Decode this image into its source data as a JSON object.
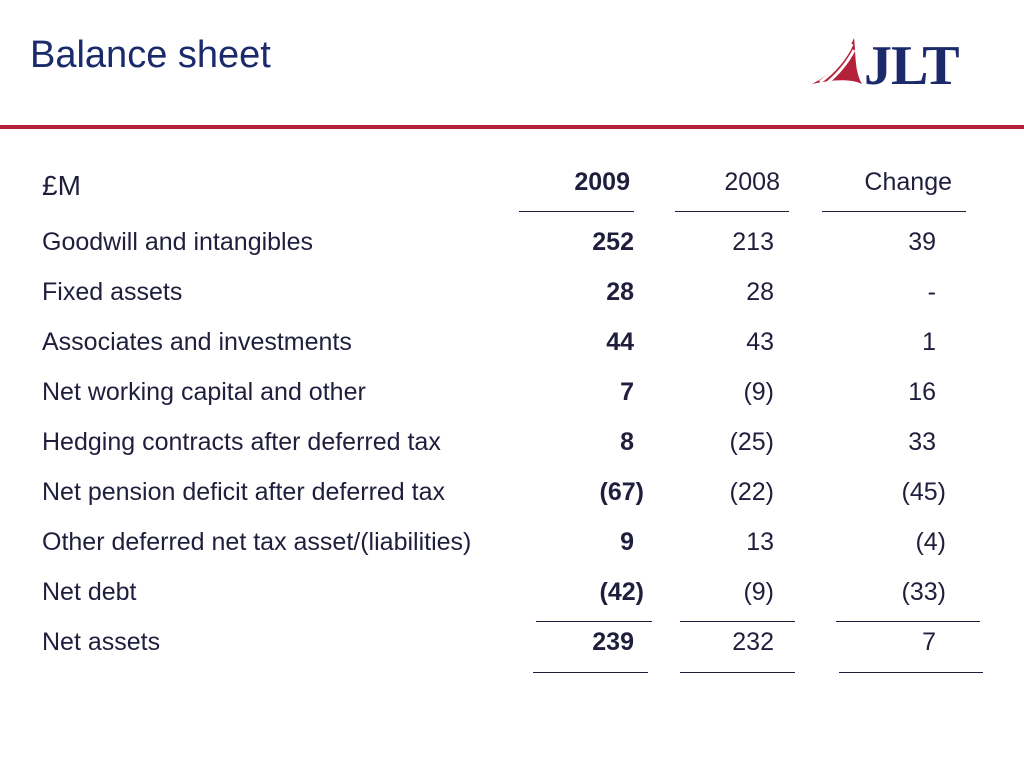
{
  "page_title": "Balance sheet",
  "logo": {
    "text": "JLT",
    "icon": "jlt-sail-logo",
    "accent": "#b5213b",
    "brand": "#1b2a6b"
  },
  "table": {
    "unit_label": "£M",
    "columns": [
      "2009",
      "2008",
      "Change"
    ],
    "rows": [
      {
        "label": "Goodwill and intangibles",
        "y2009": "252",
        "y2008": "213",
        "change": "39"
      },
      {
        "label": "Fixed assets",
        "y2009": "28",
        "y2008": "28",
        "change": "-"
      },
      {
        "label": "Associates and investments",
        "y2009": "44",
        "y2008": "43",
        "change": "1"
      },
      {
        "label": "Net working capital and other",
        "y2009": "7",
        "y2008": "(9)",
        "change": "16"
      },
      {
        "label": "Hedging contracts after deferred tax",
        "y2009": "8",
        "y2008": "(25)",
        "change": "33"
      },
      {
        "label": "Net pension deficit after deferred tax",
        "y2009": "(67)",
        "y2008": "(22)",
        "change": "(45)"
      },
      {
        "label": "Other deferred net tax asset/(liabilities)",
        "y2009": "9",
        "y2008": "13",
        "change": "(4)"
      },
      {
        "label": "Net debt",
        "y2009": "(42)",
        "y2008": "(9)",
        "change": "(33)"
      },
      {
        "label": "Net assets",
        "y2009": "239",
        "y2008": "232",
        "change": "7"
      }
    ]
  }
}
